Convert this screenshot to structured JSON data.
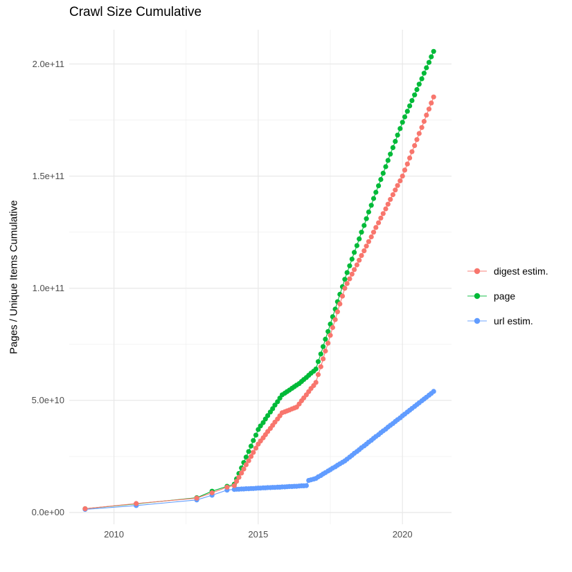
{
  "title": "Crawl Size Cumulative",
  "y_axis": {
    "label": "Pages / Unique Items Cumulative",
    "ticks": [
      "0.0e+00",
      "5.0e+10",
      "1.0e+11",
      "1.5e+11",
      "2.0e+11"
    ],
    "tick_values_billions": [
      0,
      50,
      100,
      150,
      200
    ],
    "minor_tick_values_billions": [
      25,
      75,
      125,
      175
    ]
  },
  "x_axis": {
    "ticks": [
      "2010",
      "2015",
      "2020"
    ],
    "tick_values": [
      2010,
      2015,
      2020
    ],
    "minor_tick_values": [
      2012.5,
      2017.5
    ]
  },
  "legend": {
    "items": [
      {
        "label": "digest estim.",
        "color": "#F8766D"
      },
      {
        "label": "page",
        "color": "#00BA38"
      },
      {
        "label": "url estim.",
        "color": "#619CFF"
      }
    ]
  },
  "colors": {
    "digest": "#F8766D",
    "page": "#00BA38",
    "url": "#619CFF",
    "grid_major": "#e8e8e8",
    "grid_minor": "#f1f1f1",
    "tick_text": "#4d4d4d"
  },
  "chart_data": {
    "type": "scatter",
    "title": "Crawl Size Cumulative",
    "xlabel": "",
    "ylabel": "Pages / Unique Items Cumulative",
    "xlim": [
      2008.45,
      2021.7
    ],
    "ylim_billions": [
      0,
      215
    ],
    "grid": true,
    "legend_position": "right",
    "units": "values in billions of items (1e9); x = calendar year",
    "series": [
      {
        "name": "page",
        "color": "#00BA38",
        "points": [
          [
            2009.0,
            1.7
          ],
          [
            2010.77,
            3.9
          ],
          [
            2012.87,
            6.6
          ],
          [
            2013.4,
            9.5
          ],
          [
            2013.92,
            11.7
          ],
          [
            2014.17,
            12.6
          ],
          [
            2014.25,
            15.0
          ],
          [
            2014.33,
            17.4
          ],
          [
            2014.42,
            19.9
          ],
          [
            2014.5,
            22.3
          ],
          [
            2014.58,
            24.7
          ],
          [
            2014.67,
            27.2
          ],
          [
            2014.75,
            29.6
          ],
          [
            2014.83,
            32.1
          ],
          [
            2014.92,
            34.5
          ],
          [
            2015.0,
            37.0
          ],
          [
            2015.08,
            38.6
          ],
          [
            2015.17,
            40.1
          ],
          [
            2015.25,
            41.7
          ],
          [
            2015.33,
            43.2
          ],
          [
            2015.42,
            44.8
          ],
          [
            2015.5,
            46.3
          ],
          [
            2015.58,
            47.9
          ],
          [
            2015.67,
            49.4
          ],
          [
            2015.75,
            51.0
          ],
          [
            2015.83,
            52.5
          ],
          [
            2015.92,
            53.2
          ],
          [
            2016.0,
            53.9
          ],
          [
            2016.08,
            54.6
          ],
          [
            2016.17,
            55.4
          ],
          [
            2016.25,
            56.1
          ],
          [
            2016.33,
            56.8
          ],
          [
            2016.42,
            57.5
          ],
          [
            2016.5,
            58.4
          ],
          [
            2016.58,
            59.3
          ],
          [
            2016.67,
            60.2
          ],
          [
            2016.75,
            61.2
          ],
          [
            2016.83,
            62.1
          ],
          [
            2016.92,
            63.0
          ],
          [
            2017.0,
            64.0
          ],
          [
            2017.08,
            67.3
          ],
          [
            2017.17,
            70.7
          ],
          [
            2017.25,
            74.0
          ],
          [
            2017.33,
            77.3
          ],
          [
            2017.42,
            80.7
          ],
          [
            2017.5,
            84.0
          ],
          [
            2017.58,
            87.3
          ],
          [
            2017.67,
            90.7
          ],
          [
            2017.75,
            94.0
          ],
          [
            2017.83,
            97.3
          ],
          [
            2017.92,
            100.7
          ],
          [
            2018.0,
            104.0
          ],
          [
            2018.08,
            107
          ],
          [
            2018.17,
            110
          ],
          [
            2018.25,
            113
          ],
          [
            2018.33,
            116
          ],
          [
            2018.42,
            119
          ],
          [
            2018.5,
            122
          ],
          [
            2018.58,
            125
          ],
          [
            2018.67,
            128
          ],
          [
            2018.75,
            131
          ],
          [
            2018.83,
            134
          ],
          [
            2018.92,
            137
          ],
          [
            2019.0,
            140
          ],
          [
            2019.08,
            142.8
          ],
          [
            2019.17,
            145.7
          ],
          [
            2019.25,
            148.5
          ],
          [
            2019.33,
            151.3
          ],
          [
            2019.42,
            154.2
          ],
          [
            2019.5,
            157
          ],
          [
            2019.58,
            159.8
          ],
          [
            2019.67,
            162.7
          ],
          [
            2019.75,
            165.5
          ],
          [
            2019.83,
            168.3
          ],
          [
            2019.92,
            171.2
          ],
          [
            2020.0,
            174
          ],
          [
            2020.08,
            176.4
          ],
          [
            2020.17,
            178.9
          ],
          [
            2020.25,
            181.3
          ],
          [
            2020.33,
            183.7
          ],
          [
            2020.42,
            186.2
          ],
          [
            2020.5,
            188.6
          ],
          [
            2020.58,
            191.0
          ],
          [
            2020.67,
            193.4
          ],
          [
            2020.75,
            195.9
          ],
          [
            2020.83,
            198.3
          ],
          [
            2020.92,
            200.7
          ],
          [
            2021.0,
            203.2
          ],
          [
            2021.08,
            205.6
          ]
        ]
      },
      {
        "name": "url estim.",
        "color": "#619CFF",
        "points": [
          [
            2009.0,
            1.4
          ],
          [
            2010.77,
            3.1
          ],
          [
            2012.87,
            5.6
          ],
          [
            2013.4,
            7.7
          ],
          [
            2013.92,
            10.0
          ],
          [
            2014.17,
            10.3
          ],
          [
            2014.25,
            10.4
          ],
          [
            2014.33,
            10.4
          ],
          [
            2014.42,
            10.5
          ],
          [
            2014.5,
            10.5
          ],
          [
            2014.58,
            10.6
          ],
          [
            2014.67,
            10.6
          ],
          [
            2014.75,
            10.7
          ],
          [
            2014.83,
            10.7
          ],
          [
            2014.92,
            10.8
          ],
          [
            2015.0,
            10.9
          ],
          [
            2015.08,
            10.9
          ],
          [
            2015.17,
            11.0
          ],
          [
            2015.25,
            11.0
          ],
          [
            2015.33,
            11.1
          ],
          [
            2015.42,
            11.1
          ],
          [
            2015.5,
            11.2
          ],
          [
            2015.58,
            11.2
          ],
          [
            2015.67,
            11.3
          ],
          [
            2015.75,
            11.3
          ],
          [
            2015.83,
            11.4
          ],
          [
            2015.92,
            11.4
          ],
          [
            2016.0,
            11.5
          ],
          [
            2016.08,
            11.6
          ],
          [
            2016.17,
            11.6
          ],
          [
            2016.25,
            11.7
          ],
          [
            2016.33,
            11.7
          ],
          [
            2016.42,
            11.8
          ],
          [
            2016.5,
            11.9
          ],
          [
            2016.58,
            11.9
          ],
          [
            2016.67,
            12.0
          ],
          [
            2016.75,
            14.3
          ],
          [
            2016.83,
            14.6
          ],
          [
            2016.92,
            14.9
          ],
          [
            2017.0,
            15.2
          ],
          [
            2017.08,
            15.9
          ],
          [
            2017.17,
            16.5
          ],
          [
            2017.25,
            17.2
          ],
          [
            2017.33,
            17.8
          ],
          [
            2017.42,
            18.5
          ],
          [
            2017.5,
            19.1
          ],
          [
            2017.58,
            19.8
          ],
          [
            2017.67,
            20.4
          ],
          [
            2017.75,
            21.1
          ],
          [
            2017.83,
            21.7
          ],
          [
            2017.92,
            22.4
          ],
          [
            2018.0,
            23.0
          ],
          [
            2018.08,
            23.8
          ],
          [
            2018.17,
            24.7
          ],
          [
            2018.25,
            25.5
          ],
          [
            2018.33,
            26.4
          ],
          [
            2018.42,
            27.2
          ],
          [
            2018.5,
            28.0
          ],
          [
            2018.58,
            28.9
          ],
          [
            2018.67,
            29.7
          ],
          [
            2018.75,
            30.5
          ],
          [
            2018.83,
            31.4
          ],
          [
            2018.92,
            32.2
          ],
          [
            2019.0,
            33.1
          ],
          [
            2019.08,
            33.9
          ],
          [
            2019.17,
            34.7
          ],
          [
            2019.25,
            35.6
          ],
          [
            2019.33,
            36.4
          ],
          [
            2019.42,
            37.2
          ],
          [
            2019.5,
            38.1
          ],
          [
            2019.58,
            38.9
          ],
          [
            2019.67,
            39.7
          ],
          [
            2019.75,
            40.6
          ],
          [
            2019.83,
            41.4
          ],
          [
            2019.92,
            42.2
          ],
          [
            2020.0,
            43.1
          ],
          [
            2020.08,
            43.9
          ],
          [
            2020.17,
            44.8
          ],
          [
            2020.25,
            45.6
          ],
          [
            2020.33,
            46.4
          ],
          [
            2020.42,
            47.3
          ],
          [
            2020.5,
            48.1
          ],
          [
            2020.58,
            48.9
          ],
          [
            2020.67,
            49.8
          ],
          [
            2020.75,
            50.6
          ],
          [
            2020.83,
            51.4
          ],
          [
            2020.92,
            52.3
          ],
          [
            2021.0,
            53.1
          ],
          [
            2021.08,
            54.0
          ]
        ]
      },
      {
        "name": "digest estim.",
        "color": "#F8766D",
        "points": [
          [
            2009.0,
            1.7
          ],
          [
            2010.77,
            4.0
          ],
          [
            2012.87,
            6.4
          ],
          [
            2013.4,
            8.8
          ],
          [
            2013.92,
            11.3
          ],
          [
            2014.17,
            12.0
          ],
          [
            2014.25,
            13.9
          ],
          [
            2014.33,
            15.7
          ],
          [
            2014.42,
            17.6
          ],
          [
            2014.5,
            19.4
          ],
          [
            2014.58,
            21.3
          ],
          [
            2014.67,
            23.1
          ],
          [
            2014.75,
            25.0
          ],
          [
            2014.83,
            26.8
          ],
          [
            2014.92,
            28.7
          ],
          [
            2015.0,
            30.5
          ],
          [
            2015.08,
            31.9
          ],
          [
            2015.17,
            33.3
          ],
          [
            2015.25,
            34.7
          ],
          [
            2015.33,
            36.1
          ],
          [
            2015.42,
            37.5
          ],
          [
            2015.5,
            38.9
          ],
          [
            2015.58,
            40.3
          ],
          [
            2015.67,
            41.7
          ],
          [
            2015.75,
            43.1
          ],
          [
            2015.83,
            44.5
          ],
          [
            2015.92,
            44.9
          ],
          [
            2016.0,
            45.3
          ],
          [
            2016.08,
            45.7
          ],
          [
            2016.17,
            46.2
          ],
          [
            2016.25,
            46.6
          ],
          [
            2016.33,
            47.0
          ],
          [
            2016.42,
            48.4
          ],
          [
            2016.5,
            49.8
          ],
          [
            2016.58,
            51.1
          ],
          [
            2016.67,
            52.5
          ],
          [
            2016.75,
            53.9
          ],
          [
            2016.83,
            55.3
          ],
          [
            2016.92,
            56.6
          ],
          [
            2017.0,
            58.0
          ],
          [
            2017.08,
            61.5
          ],
          [
            2017.17,
            65.0
          ],
          [
            2017.25,
            68.5
          ],
          [
            2017.33,
            72.0
          ],
          [
            2017.42,
            75.5
          ],
          [
            2017.5,
            79.0
          ],
          [
            2017.58,
            82.5
          ],
          [
            2017.67,
            86.0
          ],
          [
            2017.75,
            89.5
          ],
          [
            2017.83,
            93.0
          ],
          [
            2017.92,
            96.5
          ],
          [
            2018.0,
            100.0
          ],
          [
            2018.08,
            102.1
          ],
          [
            2018.17,
            104.2
          ],
          [
            2018.25,
            106.3
          ],
          [
            2018.33,
            108.3
          ],
          [
            2018.42,
            110.4
          ],
          [
            2018.5,
            112.5
          ],
          [
            2018.58,
            114.6
          ],
          [
            2018.67,
            116.7
          ],
          [
            2018.75,
            118.8
          ],
          [
            2018.83,
            120.8
          ],
          [
            2018.92,
            122.9
          ],
          [
            2019.0,
            125.0
          ],
          [
            2019.08,
            127.1
          ],
          [
            2019.17,
            129.2
          ],
          [
            2019.25,
            131.3
          ],
          [
            2019.33,
            133.3
          ],
          [
            2019.42,
            135.4
          ],
          [
            2019.5,
            137.5
          ],
          [
            2019.58,
            139.6
          ],
          [
            2019.67,
            141.7
          ],
          [
            2019.75,
            143.8
          ],
          [
            2019.83,
            145.8
          ],
          [
            2019.92,
            147.9
          ],
          [
            2020.0,
            150.0
          ],
          [
            2020.08,
            152.7
          ],
          [
            2020.17,
            155.4
          ],
          [
            2020.25,
            158.1
          ],
          [
            2020.33,
            160.9
          ],
          [
            2020.42,
            163.6
          ],
          [
            2020.5,
            166.3
          ],
          [
            2020.58,
            169.0
          ],
          [
            2020.67,
            171.7
          ],
          [
            2020.75,
            174.4
          ],
          [
            2020.83,
            177.2
          ],
          [
            2020.92,
            179.9
          ],
          [
            2021.0,
            182.6
          ],
          [
            2021.08,
            185.3
          ]
        ]
      }
    ]
  }
}
